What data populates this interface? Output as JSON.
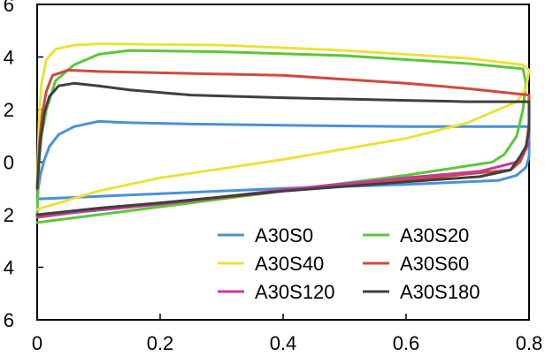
{
  "chart_data": {
    "type": "line",
    "xlim": [
      0,
      0.8
    ],
    "ylim": [
      -6,
      6
    ],
    "x_ticks": [
      "0",
      "0.2",
      "0.4",
      "0.6",
      "0.8"
    ],
    "y_ticks": [
      {
        "value": 6,
        "label": "6"
      },
      {
        "value": 4,
        "label": "4"
      },
      {
        "value": 2,
        "label": "2"
      },
      {
        "value": 0,
        "label": "0"
      },
      {
        "value": -2,
        "label": "2"
      },
      {
        "value": -4,
        "label": "4"
      },
      {
        "value": -6,
        "label": "6"
      }
    ],
    "grid": false,
    "legend_position": "bottom-right",
    "series": [
      {
        "name": "A30S0",
        "color": "#4a90d9",
        "points": [
          [
            0.0,
            -1.3
          ],
          [
            0.005,
            -0.5
          ],
          [
            0.012,
            0.1
          ],
          [
            0.02,
            0.6
          ],
          [
            0.035,
            1.05
          ],
          [
            0.06,
            1.35
          ],
          [
            0.1,
            1.55
          ],
          [
            0.15,
            1.5
          ],
          [
            0.25,
            1.45
          ],
          [
            0.4,
            1.4
          ],
          [
            0.6,
            1.35
          ],
          [
            0.79,
            1.35
          ],
          [
            0.8,
            1.35
          ],
          [
            0.8,
            0.2
          ],
          [
            0.795,
            -0.2
          ],
          [
            0.78,
            -0.5
          ],
          [
            0.75,
            -0.7
          ],
          [
            0.6,
            -0.85
          ],
          [
            0.4,
            -1.0
          ],
          [
            0.2,
            -1.2
          ],
          [
            0.1,
            -1.3
          ],
          [
            0.0,
            -1.4
          ]
        ]
      },
      {
        "name": "A30S20",
        "color": "#5cc63a",
        "points": [
          [
            0.0,
            -2.0
          ],
          [
            0.003,
            0.0
          ],
          [
            0.007,
            1.0
          ],
          [
            0.015,
            2.0
          ],
          [
            0.03,
            3.1
          ],
          [
            0.06,
            3.7
          ],
          [
            0.1,
            4.1
          ],
          [
            0.15,
            4.25
          ],
          [
            0.3,
            4.2
          ],
          [
            0.5,
            4.05
          ],
          [
            0.7,
            3.75
          ],
          [
            0.79,
            3.55
          ],
          [
            0.795,
            3.0
          ],
          [
            0.79,
            2.0
          ],
          [
            0.78,
            1.0
          ],
          [
            0.76,
            0.3
          ],
          [
            0.74,
            0.0
          ],
          [
            0.6,
            -0.5
          ],
          [
            0.4,
            -1.1
          ],
          [
            0.2,
            -1.7
          ],
          [
            0.1,
            -2.0
          ],
          [
            0.0,
            -2.3
          ]
        ]
      },
      {
        "name": "A30S40",
        "color": "#ece13a",
        "points": [
          [
            0.0,
            -1.0
          ],
          [
            0.003,
            1.5
          ],
          [
            0.007,
            3.0
          ],
          [
            0.015,
            3.9
          ],
          [
            0.03,
            4.3
          ],
          [
            0.06,
            4.45
          ],
          [
            0.1,
            4.5
          ],
          [
            0.3,
            4.45
          ],
          [
            0.5,
            4.25
          ],
          [
            0.7,
            3.95
          ],
          [
            0.79,
            3.7
          ],
          [
            0.8,
            3.5
          ],
          [
            0.795,
            2.8
          ],
          [
            0.78,
            2.3
          ],
          [
            0.7,
            1.5
          ],
          [
            0.6,
            0.9
          ],
          [
            0.4,
            0.1
          ],
          [
            0.2,
            -0.6
          ],
          [
            0.1,
            -1.1
          ],
          [
            0.0,
            -1.8
          ]
        ]
      },
      {
        "name": "A30S60",
        "color": "#d0493e",
        "points": [
          [
            0.0,
            -1.0
          ],
          [
            0.004,
            0.8
          ],
          [
            0.008,
            1.8
          ],
          [
            0.015,
            2.7
          ],
          [
            0.025,
            3.3
          ],
          [
            0.05,
            3.5
          ],
          [
            0.1,
            3.45
          ],
          [
            0.2,
            3.4
          ],
          [
            0.4,
            3.3
          ],
          [
            0.6,
            3.0
          ],
          [
            0.7,
            2.8
          ],
          [
            0.8,
            2.55
          ],
          [
            0.8,
            1.5
          ],
          [
            0.795,
            0.5
          ],
          [
            0.785,
            0.0
          ],
          [
            0.77,
            -0.3
          ],
          [
            0.7,
            -0.45
          ],
          [
            0.6,
            -0.7
          ],
          [
            0.4,
            -1.1
          ],
          [
            0.2,
            -1.6
          ],
          [
            0.1,
            -1.8
          ],
          [
            0.0,
            -2.1
          ]
        ]
      },
      {
        "name": "A30S120",
        "color": "#c8399a",
        "points": [
          [
            0.0,
            -2.05
          ],
          [
            0.2,
            -1.6
          ],
          [
            0.4,
            -1.05
          ],
          [
            0.6,
            -0.6
          ],
          [
            0.72,
            -0.35
          ],
          [
            0.78,
            0.0
          ],
          [
            0.8,
            0.7
          ]
        ]
      },
      {
        "name": "A30S180",
        "color": "#3f3f3f",
        "points": [
          [
            0.0,
            -1.0
          ],
          [
            0.005,
            0.8
          ],
          [
            0.012,
            1.9
          ],
          [
            0.02,
            2.5
          ],
          [
            0.035,
            2.9
          ],
          [
            0.06,
            3.0
          ],
          [
            0.1,
            2.9
          ],
          [
            0.15,
            2.75
          ],
          [
            0.25,
            2.55
          ],
          [
            0.4,
            2.45
          ],
          [
            0.6,
            2.35
          ],
          [
            0.7,
            2.3
          ],
          [
            0.8,
            2.3
          ],
          [
            0.8,
            1.2
          ],
          [
            0.795,
            0.6
          ],
          [
            0.785,
            0.2
          ],
          [
            0.77,
            -0.3
          ],
          [
            0.72,
            -0.55
          ],
          [
            0.6,
            -0.75
          ],
          [
            0.4,
            -1.1
          ],
          [
            0.2,
            -1.55
          ],
          [
            0.1,
            -1.75
          ],
          [
            0.0,
            -2.0
          ]
        ]
      }
    ]
  }
}
